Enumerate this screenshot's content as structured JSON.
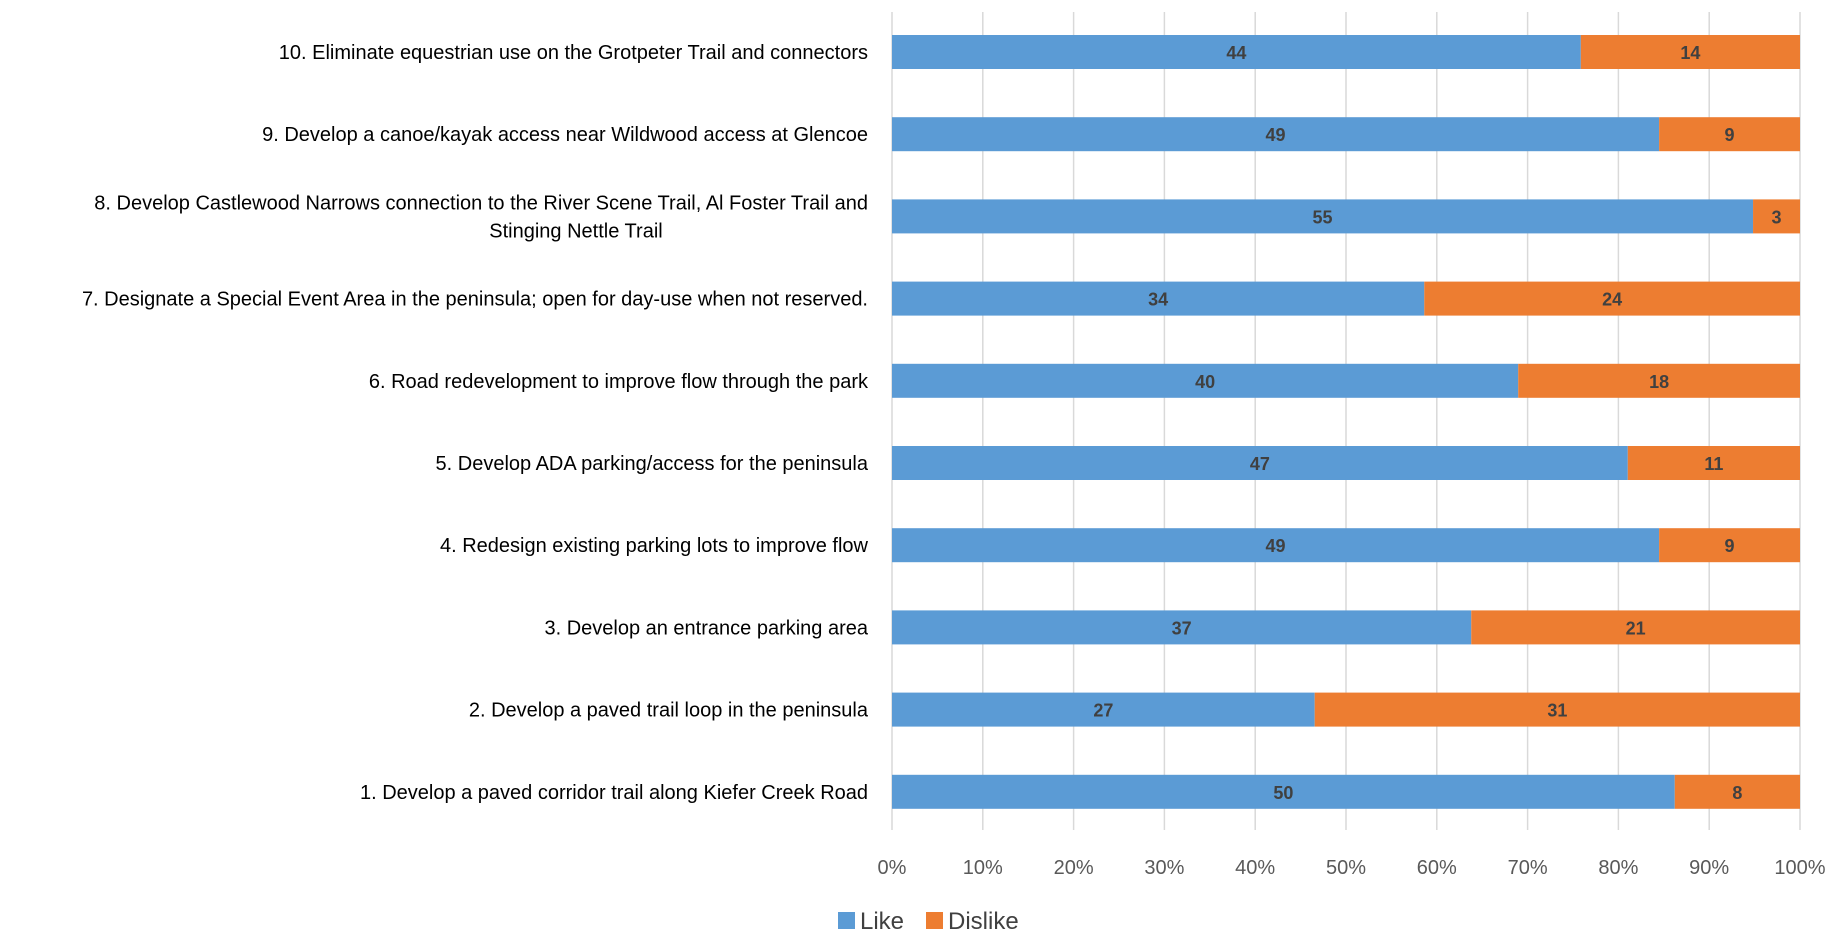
{
  "chart_data": {
    "type": "bar",
    "orientation": "horizontal",
    "stacking": "percent",
    "categories": [
      "10. Eliminate equestrian use on the Grotpeter Trail and connectors",
      "9. Develop a canoe/kayak access near Wildwood access at Glencoe",
      "8. Develop Castlewood Narrows connection to the River Scene Trail, Al Foster Trail and Stinging Nettle Trail",
      "7. Designate a Special Event Area in the peninsula; open for day-use when not reserved.",
      "6. Road redevelopment to improve flow through the park",
      "5. Develop ADA parking/access for the peninsula",
      "4. Redesign existing parking lots to improve flow",
      "3. Develop an entrance parking area",
      "2. Develop a paved trail loop in the peninsula",
      "1. Develop a paved corridor trail along Kiefer Creek Road"
    ],
    "category_lines": [
      [
        "10. Eliminate equestrian use on the Grotpeter Trail and connectors"
      ],
      [
        "9. Develop a canoe/kayak access near Wildwood access at Glencoe"
      ],
      [
        "8. Develop Castlewood Narrows connection to the River Scene Trail, Al Foster Trail and",
        "Stinging Nettle Trail"
      ],
      [
        "7. Designate a Special Event Area in the peninsula; open for day-use when not reserved."
      ],
      [
        "6. Road redevelopment to improve flow through the park"
      ],
      [
        "5. Develop ADA parking/access for the peninsula"
      ],
      [
        "4. Redesign existing parking lots to improve flow"
      ],
      [
        "3. Develop an entrance parking area"
      ],
      [
        "2. Develop a paved trail loop in the peninsula"
      ],
      [
        "1. Develop a paved corridor trail along Kiefer Creek Road"
      ]
    ],
    "series": [
      {
        "name": "Like",
        "color": "#5B9BD5",
        "values": [
          44,
          49,
          55,
          34,
          40,
          47,
          49,
          37,
          27,
          50
        ]
      },
      {
        "name": "Dislike",
        "color": "#ED7D31",
        "values": [
          14,
          9,
          3,
          24,
          18,
          11,
          9,
          21,
          31,
          8
        ]
      }
    ],
    "x_ticks": [
      "0%",
      "10%",
      "20%",
      "30%",
      "40%",
      "50%",
      "60%",
      "70%",
      "80%",
      "90%",
      "100%"
    ],
    "xlim": [
      0,
      100
    ],
    "grid": "vertical",
    "legend_position": "bottom",
    "title": "",
    "xlabel": "",
    "ylabel": ""
  }
}
